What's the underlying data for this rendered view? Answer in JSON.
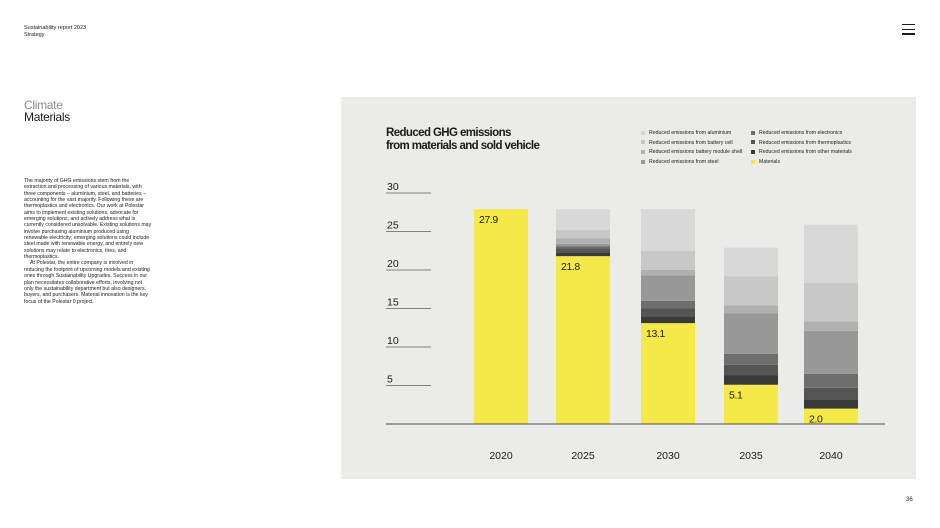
{
  "header": {
    "report_title": "Sustainability report 2023",
    "section": "Strategy"
  },
  "menu": {
    "icon": "hamburger-menu-icon"
  },
  "sidebar": {
    "kicker": "Climate",
    "title": "Materials",
    "paragraphs": [
      "The majority of GHG emissions stem from the extraction and processing of various materials, with three components – aluminium, steel, and batteries – accounting for the vast majority. Following these are thermoplastics and electronics. Our work at Polestar aims to implement existing solutions, advocate for emerging solutions, and actively address what is currently considered unsolvable. Existing solutions may involve purchasing aluminium produced using renewable electricity; emerging solutions could include steel made with renewable energy, and entirely new solutions may relate to electronics, tires, and thermoplastics.",
      "At Polestar, the entire company is involved in reducing the footprint of upcoming models and existing ones through Sustainability Upgrades. Success in our plan necessitates collaborative efforts, involving not only the sustainability department but also designers, buyers, and purchasers. Material innovation is the key focus of the Polestar 0 project."
    ]
  },
  "page_number": "36",
  "chart_data": {
    "type": "bar",
    "stacked": true,
    "title_lines": [
      "Reduced GHG emissions",
      "from materials and sold vehicle"
    ],
    "categories": [
      "2020",
      "2025",
      "2030",
      "2035",
      "2040"
    ],
    "ylim": [
      0,
      30
    ],
    "yticks": [
      5,
      10,
      15,
      20,
      25,
      30
    ],
    "legend_placement": "top-right",
    "legend_columns": [
      [
        "Reduced emissions from aluminium",
        "Reduced emissions from battery cell",
        "Reduced emissions battery module shell",
        "Reduced emissions from steel"
      ],
      [
        "Reduced emissions from electronics",
        "Reduced emissions from thermoplastics",
        "Reduced emissions from other materials",
        "Materials"
      ]
    ],
    "series": [
      {
        "name": "Materials",
        "color": "#f5e94a",
        "values": [
          27.9,
          21.8,
          13.1,
          5.1,
          2.0
        ],
        "labels": [
          "27.9",
          "21.8",
          "13.1",
          "5.1",
          "2.0"
        ]
      },
      {
        "name": "Reduced emissions from other materials",
        "color": "#3a3a3a",
        "values": [
          0,
          0.5,
          0.9,
          1.2,
          1.2
        ]
      },
      {
        "name": "Reduced emissions from thermoplastics",
        "color": "#555555",
        "values": [
          0,
          0.5,
          1.0,
          1.4,
          1.5
        ]
      },
      {
        "name": "Reduced emissions from electronics",
        "color": "#6e6e6e",
        "values": [
          0,
          0.3,
          1.0,
          1.4,
          1.8
        ]
      },
      {
        "name": "Reduced emissions from steel",
        "color": "#989898",
        "values": [
          0,
          0.3,
          3.3,
          5.3,
          5.6
        ]
      },
      {
        "name": "Reduced emissions battery module shell",
        "color": "#b0b0b0",
        "values": [
          0,
          0.7,
          0.7,
          1.0,
          1.2
        ]
      },
      {
        "name": "Reduced emissions from battery cell",
        "color": "#c8c8c8",
        "values": [
          0,
          1.1,
          2.5,
          3.8,
          5.0
        ]
      },
      {
        "name": "Reduced emissions from aluminium",
        "color": "#d8d8d8",
        "values": [
          0,
          2.7,
          5.4,
          3.7,
          7.6
        ]
      }
    ]
  }
}
